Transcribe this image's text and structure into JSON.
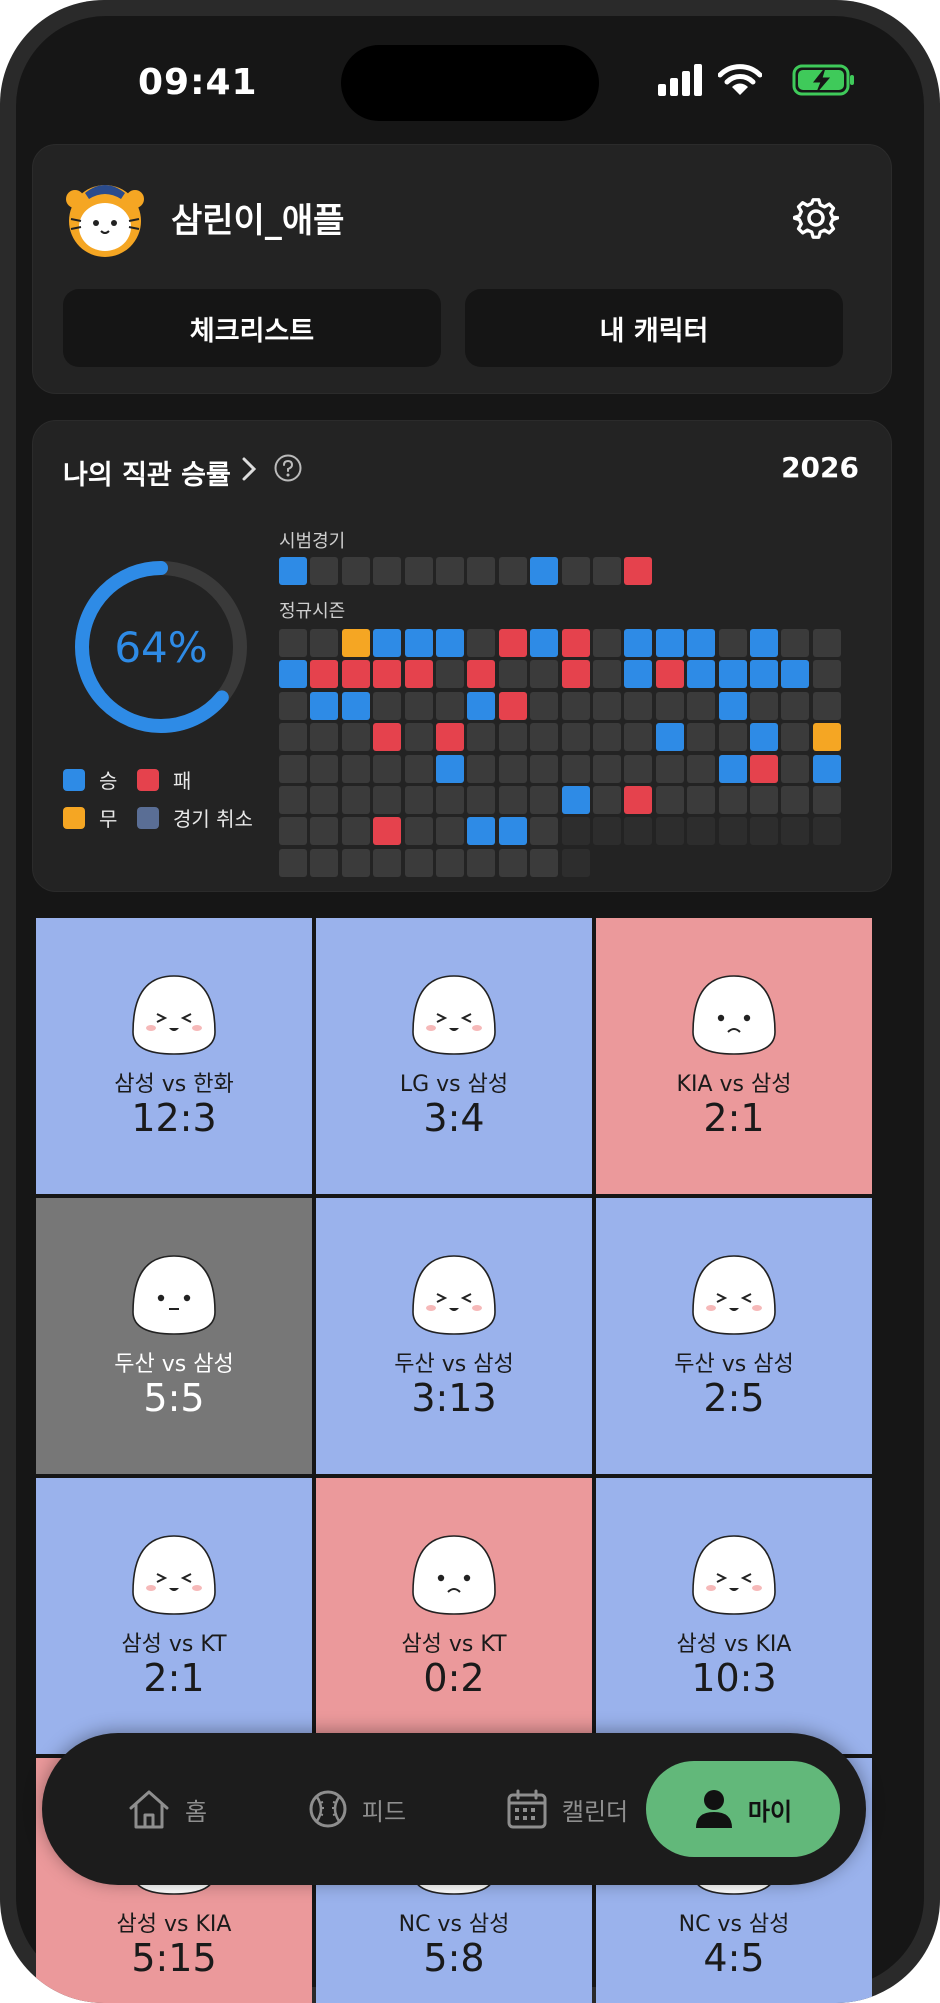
{
  "status_bar": {
    "time": "09:41",
    "icons": [
      "signal-icon",
      "wifi-icon",
      "battery-charging-icon"
    ],
    "battery_color": "#3fca5a"
  },
  "profile": {
    "avatar_icon": "tiger-mascot-icon",
    "username": "삼린이_애플",
    "settings_icon": "gear-icon",
    "checklist_label": "체크리스트",
    "character_label": "내 캐릭터"
  },
  "stats": {
    "title": "나의 직관 승률",
    "year": "2026",
    "win_rate": "64%",
    "win_rate_value": 0.64,
    "colors": {
      "win": "#2e8be6",
      "loss": "#e5424d",
      "draw": "#f5a623",
      "cancel": "#5a6e95"
    },
    "legend": {
      "win": "승",
      "loss": "패",
      "draw": "무",
      "cancel": "경기 취소"
    },
    "preseason_label": "시범경기",
    "preseason": "WNNNNNNNWNNL",
    "regular_label": "정규시즌",
    "regular": [
      "NNDWWWNLWLNWWWNWNN",
      "WLLLLNLNNLNWLWWWWN",
      "NWWNNNWLNNNNNNWNNN",
      "NNNLNLNNNNNNWNNWND",
      "NNNNNWNNNNNNNNWLNW",
      "NNNNNNNNNWNLNNNNNN",
      "NNNLNNWWNEEEEEEEEE",
      "NNNNNNNNNE"
    ]
  },
  "games": [
    {
      "teams": "삼성 vs 한화",
      "score": "12:3",
      "result": "w",
      "face": "happy"
    },
    {
      "teams": "LG vs 삼성",
      "score": "3:4",
      "result": "w",
      "face": "happy"
    },
    {
      "teams": "KIA vs 삼성",
      "score": "2:1",
      "result": "l",
      "face": "sad"
    },
    {
      "teams": "두산 vs 삼성",
      "score": "5:5",
      "result": "d",
      "face": "neutral"
    },
    {
      "teams": "두산 vs 삼성",
      "score": "3:13",
      "result": "w",
      "face": "happy"
    },
    {
      "teams": "두산 vs 삼성",
      "score": "2:5",
      "result": "w",
      "face": "happy"
    },
    {
      "teams": "삼성 vs KT",
      "score": "2:1",
      "result": "w",
      "face": "happy"
    },
    {
      "teams": "삼성 vs KT",
      "score": "0:2",
      "result": "l",
      "face": "sad"
    },
    {
      "teams": "삼성 vs KIA",
      "score": "10:3",
      "result": "w",
      "face": "happy"
    },
    {
      "teams": "삼성 vs KIA",
      "score": "5:15",
      "result": "l",
      "face": "happy"
    },
    {
      "teams": "NC vs 삼성",
      "score": "5:8",
      "result": "w",
      "face": "happy"
    },
    {
      "teams": "NC vs 삼성",
      "score": "4:5",
      "result": "w",
      "face": "happy"
    }
  ],
  "tabbar": {
    "tabs": [
      {
        "label": "홈",
        "icon": "home-icon"
      },
      {
        "label": "피드",
        "icon": "baseball-icon"
      },
      {
        "label": "캘린더",
        "icon": "calendar-icon"
      },
      {
        "label": "마이",
        "icon": "person-icon",
        "active": true
      }
    ]
  }
}
